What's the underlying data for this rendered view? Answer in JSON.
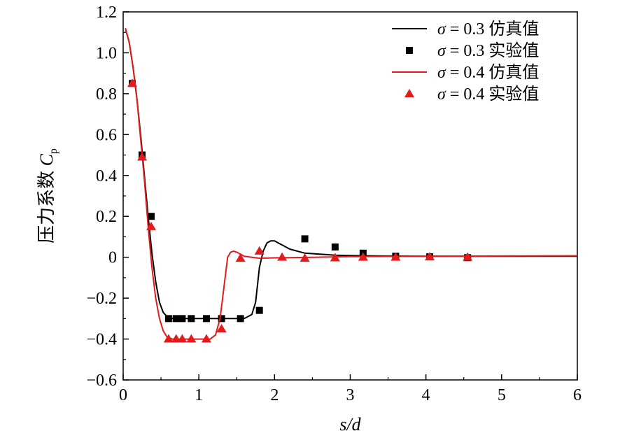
{
  "chart_data": {
    "type": "line",
    "xlabel": "s/d",
    "ylabel": "压力系数 C_p",
    "xlim": [
      0,
      6
    ],
    "ylim": [
      -0.6,
      1.2
    ],
    "xticks": [
      "0",
      "1",
      "2",
      "3",
      "4",
      "5",
      "6"
    ],
    "yticks": [
      "−0.6",
      "−0.4",
      "−0.2",
      "0",
      "0.2",
      "0.4",
      "0.6",
      "0.8",
      "1.0",
      "1.2"
    ],
    "xtick_values": [
      0,
      1,
      2,
      3,
      4,
      5,
      6
    ],
    "ytick_values": [
      -0.6,
      -0.4,
      -0.2,
      0,
      0.2,
      0.4,
      0.6,
      0.8,
      1.0,
      1.2
    ],
    "grid": false,
    "legend_position": "top-right",
    "series": [
      {
        "name": "σ = 0.3 仿真值",
        "kind": "line",
        "color": "#000000",
        "x": [
          0.03,
          0.08,
          0.13,
          0.18,
          0.23,
          0.28,
          0.33,
          0.38,
          0.43,
          0.48,
          0.53,
          0.58,
          0.65,
          0.8,
          1.0,
          1.2,
          1.4,
          1.6,
          1.7,
          1.75,
          1.8,
          1.85,
          1.9,
          1.95,
          2.0,
          2.05,
          2.1,
          2.2,
          2.4,
          2.6,
          2.8,
          3.0,
          3.4,
          4.0,
          5.0,
          6.0
        ],
        "y": [
          1.12,
          1.05,
          0.93,
          0.78,
          0.6,
          0.4,
          0.2,
          0.02,
          -0.12,
          -0.22,
          -0.27,
          -0.29,
          -0.3,
          -0.3,
          -0.3,
          -0.3,
          -0.3,
          -0.3,
          -0.28,
          -0.22,
          -0.05,
          0.03,
          0.07,
          0.08,
          0.08,
          0.07,
          0.06,
          0.04,
          0.02,
          0.015,
          0.01,
          0.008,
          0.006,
          0.005,
          0.005,
          0.005
        ]
      },
      {
        "name": "σ = 0.3 实验值",
        "kind": "scatter",
        "marker": "square",
        "color": "#000000",
        "x": [
          0.12,
          0.25,
          0.37,
          0.6,
          0.7,
          0.78,
          0.9,
          1.1,
          1.3,
          1.55,
          1.8,
          2.4,
          2.8,
          3.17,
          3.6,
          4.05,
          4.55
        ],
        "y": [
          0.85,
          0.5,
          0.2,
          -0.3,
          -0.3,
          -0.3,
          -0.3,
          -0.3,
          -0.3,
          -0.3,
          -0.26,
          0.09,
          0.05,
          0.02,
          0.005,
          0.002,
          -0.002
        ]
      },
      {
        "name": "σ = 0.4 仿真值",
        "kind": "line",
        "color": "#e41a1c",
        "x": [
          0.03,
          0.08,
          0.13,
          0.18,
          0.23,
          0.28,
          0.33,
          0.38,
          0.43,
          0.48,
          0.53,
          0.58,
          0.65,
          0.8,
          1.0,
          1.15,
          1.22,
          1.28,
          1.33,
          1.38,
          1.42,
          1.46,
          1.5,
          1.6,
          1.8,
          2.0,
          2.5,
          3.0,
          4.0,
          5.0,
          6.0
        ],
        "y": [
          1.12,
          1.05,
          0.93,
          0.78,
          0.58,
          0.38,
          0.15,
          -0.05,
          -0.2,
          -0.3,
          -0.36,
          -0.39,
          -0.4,
          -0.4,
          -0.4,
          -0.4,
          -0.38,
          -0.3,
          -0.15,
          0.0,
          0.025,
          0.03,
          0.025,
          0.005,
          -0.005,
          -0.003,
          0.0,
          0.003,
          0.005,
          0.006,
          0.007
        ]
      },
      {
        "name": "σ = 0.4 实验值",
        "kind": "scatter",
        "marker": "triangle",
        "color": "#e41a1c",
        "x": [
          0.12,
          0.25,
          0.37,
          0.6,
          0.7,
          0.78,
          0.9,
          1.1,
          1.3,
          1.55,
          1.8,
          2.1,
          2.4,
          2.8,
          3.17,
          3.6,
          4.05,
          4.55
        ],
        "y": [
          0.85,
          0.49,
          0.15,
          -0.4,
          -0.4,
          -0.4,
          -0.4,
          -0.4,
          -0.35,
          -0.005,
          0.03,
          0.0,
          -0.005,
          -0.003,
          0.0,
          0.0,
          0.002,
          0.0
        ]
      }
    ]
  }
}
